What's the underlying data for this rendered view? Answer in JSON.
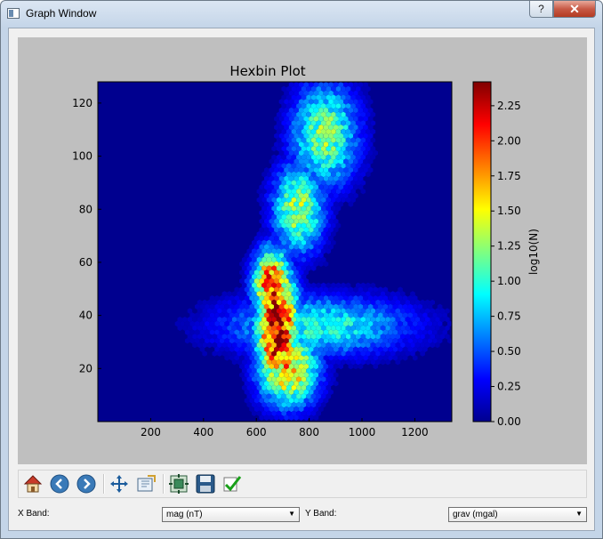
{
  "window": {
    "title": "Graph Window",
    "help_label": "?",
    "close_label": "✕"
  },
  "toolbar": {
    "icons": [
      "home-icon",
      "back-arrow-icon",
      "forward-arrow-icon",
      "pan-move-icon",
      "zoom-rect-icon",
      "subplot-config-icon",
      "save-floppy-icon",
      "check-icon"
    ]
  },
  "bands": {
    "x_label": "X Band:",
    "x_value": "mag (nT)",
    "y_label": "Y Band:",
    "y_value": "grav (mgal)"
  },
  "chart_data": {
    "type": "heatmap",
    "subtype": "hexbin",
    "title": "Hexbin Plot",
    "xlim": [
      0,
      1340
    ],
    "ylim": [
      0,
      128
    ],
    "x_ticks": [
      200,
      400,
      600,
      800,
      1000,
      1200
    ],
    "y_ticks": [
      20,
      40,
      60,
      80,
      100,
      120
    ],
    "colorbar": {
      "label": "log10(N)",
      "range": [
        0,
        2.42
      ],
      "ticks": [
        "0.00",
        "0.25",
        "0.50",
        "0.75",
        "1.00",
        "1.25",
        "1.50",
        "1.75",
        "2.00",
        "2.25"
      ],
      "colormap": "jet"
    },
    "density_clusters": [
      {
        "x": 680,
        "y": 35,
        "spread_x": 55,
        "spread_y": 16,
        "peak": 2.4
      },
      {
        "x": 660,
        "y": 52,
        "spread_x": 50,
        "spread_y": 9,
        "peak": 2.1
      },
      {
        "x": 720,
        "y": 20,
        "spread_x": 80,
        "spread_y": 10,
        "peak": 1.7
      },
      {
        "x": 760,
        "y": 80,
        "spread_x": 70,
        "spread_y": 12,
        "peak": 1.3
      },
      {
        "x": 860,
        "y": 108,
        "spread_x": 90,
        "spread_y": 14,
        "peak": 1.2
      },
      {
        "x": 830,
        "y": 36,
        "spread_x": 250,
        "spread_y": 8,
        "peak": 1.0
      }
    ],
    "grid": false,
    "legend": "none"
  }
}
